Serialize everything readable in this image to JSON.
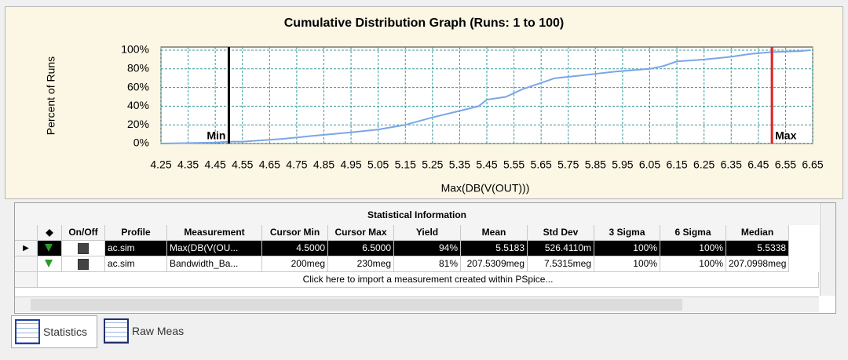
{
  "chart_data": {
    "type": "line",
    "title": "Cumulative Distribution Graph (Runs: 1 to 100)",
    "x_label": "Max(DB(V(OUT)))",
    "y_label": "Percent of Runs",
    "x": [
      4.25,
      4.45,
      4.5,
      4.55,
      4.7,
      4.8,
      4.95,
      5.05,
      5.15,
      5.25,
      5.35,
      5.42,
      5.45,
      5.52,
      5.58,
      5.65,
      5.7,
      5.8,
      5.92,
      6.05,
      6.1,
      6.15,
      6.25,
      6.35,
      6.42,
      6.5,
      6.6,
      6.64
    ],
    "values": [
      0,
      1,
      2,
      2,
      5,
      8,
      12,
      15,
      20,
      28,
      35,
      40,
      47,
      50,
      58,
      65,
      70,
      73,
      77,
      80,
      83,
      88,
      90,
      93,
      96,
      98,
      99,
      100
    ],
    "color": "#7aa6e8",
    "xlim": [
      4.25,
      6.65
    ],
    "xticks": [
      4.25,
      4.35,
      4.45,
      4.55,
      4.65,
      4.75,
      4.85,
      4.95,
      5.05,
      5.15,
      5.25,
      5.35,
      5.45,
      5.55,
      5.65,
      5.75,
      5.85,
      5.95,
      6.05,
      6.15,
      6.25,
      6.35,
      6.45,
      6.55,
      6.65
    ],
    "ylim": [
      0,
      100
    ],
    "yticks": [
      {
        "value": 0,
        "label": "0%"
      },
      {
        "value": 20,
        "label": "20%"
      },
      {
        "value": 40,
        "label": "40%"
      },
      {
        "value": 60,
        "label": "60%"
      },
      {
        "value": 80,
        "label": "80%"
      },
      {
        "value": 100,
        "label": "100%"
      }
    ],
    "grid": true,
    "cursors": [
      {
        "name": "Min",
        "value": 4.5,
        "color": "#000000"
      },
      {
        "name": "Max",
        "value": 6.5,
        "color": "#e02020"
      }
    ]
  },
  "table": {
    "title": "Statistical Information",
    "columns": [
      "◆",
      "On/Off",
      "Profile",
      "Measurement",
      "Cursor Min",
      "Cursor Max",
      "Yield",
      "Mean",
      "Std Dev",
      "3 Sigma",
      "6 Sigma",
      "Median"
    ],
    "rows": [
      [
        "ac.sim",
        "Max(DB(V(OU...",
        "4.5000",
        "6.5000",
        "94%",
        "5.5183",
        "526.4110m",
        "100%",
        "100%",
        "5.5338"
      ],
      [
        "ac.sim",
        "Bandwidth_Ba...",
        "200meg",
        "230meg",
        "81%",
        "207.5309meg",
        "7.5315meg",
        "100%",
        "100%",
        "207.0998meg"
      ]
    ],
    "import_row": "Click here to import a measurement created within PSpice..."
  },
  "tabs": [
    "Statistics",
    "Raw Meas"
  ]
}
